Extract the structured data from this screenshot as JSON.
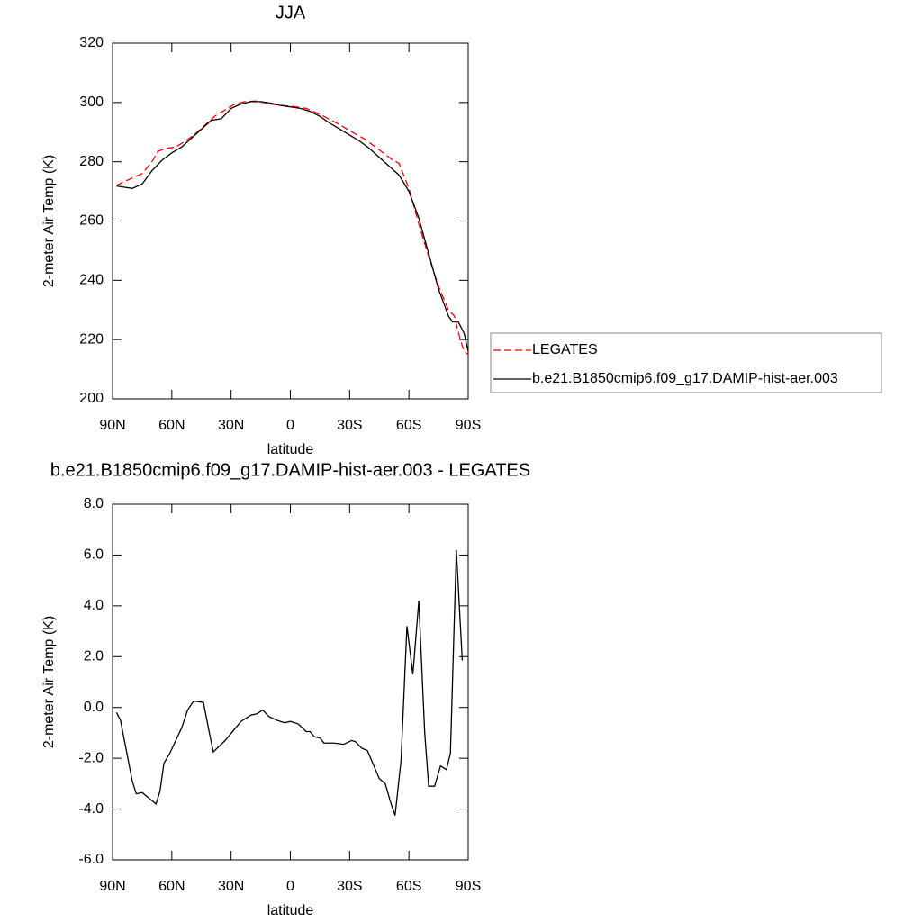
{
  "chart_data": [
    {
      "type": "line",
      "title": "JJA",
      "ylabel": "2-meter Air Temp (K)",
      "xlabel": "latitude",
      "xlim": [
        90,
        -90
      ],
      "xticks": [
        {
          "value": 90,
          "label": "90N"
        },
        {
          "value": 60,
          "label": "60N"
        },
        {
          "value": 30,
          "label": "30N"
        },
        0,
        {
          "value": -30,
          "label": "30S"
        },
        {
          "value": -60,
          "label": "60S"
        },
        {
          "value": -90,
          "label": "90S"
        }
      ],
      "ylim": [
        200,
        320
      ],
      "yticks": [
        200,
        220,
        240,
        260,
        280,
        300,
        320
      ],
      "legend": "right",
      "series": [
        {
          "name": "LEGATES",
          "color": "#ff0000",
          "dash": "dashed",
          "x": [
            88,
            85,
            80,
            75,
            70,
            67,
            63,
            58,
            53,
            48,
            43,
            38,
            33,
            28,
            23,
            17,
            10,
            5,
            0,
            -8,
            -15,
            -25,
            -30,
            -38,
            -45,
            -52,
            -55,
            -60,
            -65,
            -70,
            -75,
            -80,
            -83,
            -86,
            -88,
            -90
          ],
          "values": [
            272,
            273,
            274.5,
            276,
            280,
            283.5,
            284.5,
            285,
            287,
            289.5,
            292.5,
            295.5,
            297.5,
            299.5,
            300.3,
            300.5,
            299.5,
            299,
            298.8,
            298,
            296,
            292.5,
            290.5,
            287.5,
            284,
            280.5,
            279.5,
            271,
            259,
            248,
            238,
            230,
            228,
            220,
            216,
            215
          ]
        },
        {
          "name": "b.e21.B1850cmip6.f09_g17.DAMIP-hist-aer.003",
          "color": "#000000",
          "dash": "solid",
          "x": [
            88,
            85,
            80,
            75,
            70,
            65,
            60,
            55,
            50,
            45,
            40,
            35,
            30,
            25,
            20,
            15,
            10,
            5,
            0,
            -5,
            -10,
            -15,
            -20,
            -25,
            -30,
            -35,
            -40,
            -45,
            -50,
            -55,
            -60,
            -65,
            -70,
            -75,
            -80,
            -82,
            -85,
            -88,
            -90
          ],
          "values": [
            271.8,
            271.5,
            271,
            272.5,
            277,
            280.5,
            283,
            285,
            288,
            291,
            294,
            294.5,
            298,
            299.5,
            300.3,
            300.3,
            299.8,
            299,
            298.5,
            298,
            297,
            295.3,
            293,
            291,
            289,
            287,
            284.5,
            281.5,
            278.5,
            275.5,
            270,
            261,
            249,
            237,
            228,
            226,
            226,
            222,
            216
          ]
        }
      ]
    },
    {
      "type": "line",
      "title": "b.e21.B1850cmip6.f09_g17.DAMIP-hist-aer.003 - LEGATES",
      "ylabel": "2-meter Air Temp (K)",
      "xlabel": "latitude",
      "xlim": [
        90,
        -90
      ],
      "xticks": [
        {
          "value": 90,
          "label": "90N"
        },
        {
          "value": 60,
          "label": "60N"
        },
        {
          "value": 30,
          "label": "30N"
        },
        0,
        {
          "value": -30,
          "label": "30S"
        },
        {
          "value": -60,
          "label": "60S"
        },
        {
          "value": -90,
          "label": "90S"
        }
      ],
      "ylim": [
        -6,
        8
      ],
      "yticks": [
        {
          "value": -6,
          "label": "-6.0"
        },
        {
          "value": -4,
          "label": "-4.0"
        },
        {
          "value": -2,
          "label": "-2.0"
        },
        {
          "value": 0,
          "label": "0.0"
        },
        {
          "value": 2,
          "label": "2.0"
        },
        {
          "value": 4,
          "label": "4.0"
        },
        {
          "value": 6,
          "label": "6.0"
        },
        {
          "value": 8,
          "label": "8.0"
        }
      ],
      "series": [
        {
          "color": "#000000",
          "dash": "solid",
          "x": [
            88,
            86,
            80,
            78,
            75,
            68,
            66,
            64,
            61,
            55,
            52,
            49,
            44,
            41,
            39,
            33,
            25,
            20,
            17,
            14,
            11,
            7,
            3,
            0,
            -4,
            -8,
            -10,
            -12,
            -15,
            -17,
            -22,
            -27,
            -31,
            -33,
            -36,
            -39,
            -45,
            -48,
            -51,
            -53,
            -56,
            -59,
            -62,
            -65,
            -68,
            -70,
            -73,
            -76,
            -79,
            -81,
            -84,
            -87
          ],
          "values": [
            -0.2,
            -0.5,
            -2.9,
            -3.4,
            -3.35,
            -3.8,
            -3.3,
            -2.2,
            -1.8,
            -0.8,
            -0.1,
            0.25,
            0.2,
            -1.0,
            -1.75,
            -1.3,
            -0.55,
            -0.3,
            -0.25,
            -0.1,
            -0.35,
            -0.5,
            -0.6,
            -0.55,
            -0.65,
            -0.95,
            -0.95,
            -1.15,
            -1.2,
            -1.4,
            -1.4,
            -1.45,
            -1.3,
            -1.35,
            -1.6,
            -1.7,
            -2.8,
            -3.0,
            -3.8,
            -4.25,
            -2.1,
            3.2,
            1.3,
            4.2,
            -1.0,
            -3.1,
            -3.1,
            -2.3,
            -2.45,
            -1.8,
            6.2,
            1.85
          ]
        }
      ]
    }
  ]
}
